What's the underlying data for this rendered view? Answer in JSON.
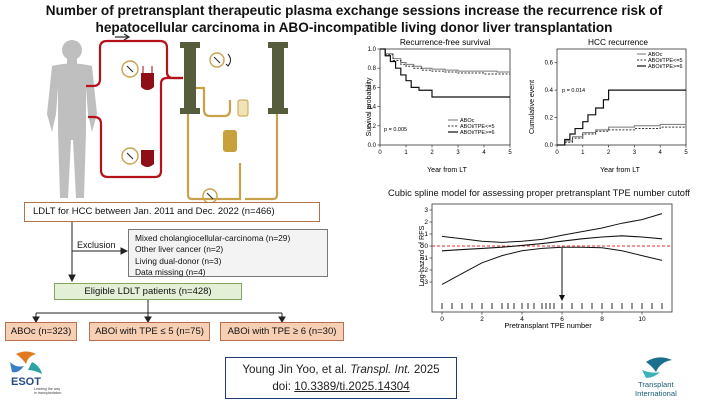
{
  "title": {
    "line1": "Number of pretransplant therapeutic plasma exchange sessions increase the recurrence risk of",
    "line2": "hepatocellular carcinoma in ABO-incompatible living donor liver transplantation"
  },
  "km_rfs": {
    "title": "Recurrence-free survival",
    "ylabel": "Survival probability",
    "xlabel": "Year from LT",
    "p_value": "p = 0.005",
    "legend": [
      "ABOc",
      "ABOi/TPE<=5",
      "ABOi/TPE>=6"
    ]
  },
  "km_hcc": {
    "title": "HCC recurrence",
    "ylabel": "Cumulative event",
    "xlabel": "Year from LT",
    "p_value": "p = 0.014",
    "legend": [
      "ABOc",
      "ABOi/TPE<=5",
      "ABOi/TPE>=6"
    ]
  },
  "spline": {
    "title": "Cubic spline model for assessing proper pretransplant TPE number cutoff",
    "ylabel": "Log-hazard of RFS",
    "xlabel": "Pretransplant TPE number"
  },
  "flowchart": {
    "start": "LDLT for HCC between Jan. 2011 and Dec. 2022 (n=466)",
    "exclusion_label": "Exclusion",
    "exclusions": [
      "Mixed cholangiocellular-carcinoma (n=29)",
      "Other liver cancer (n=2)",
      "Living dual-donor (n=3)",
      "Data missing (n=4)"
    ],
    "eligible": "Eligible LDLT patients (n=428)",
    "groups": [
      "ABOc (n=323)",
      "ABOi with TPE ≤ 5 (n=75)",
      "ABOi with TPE ≥ 6 (n=30)"
    ]
  },
  "citation": {
    "authors": "Young Jin Yoo, et al.",
    "journal": "Transpl. Int.",
    "year": "2025",
    "doi_label": "doi:",
    "doi": "10.3389/ti.2025.14304"
  },
  "logos": {
    "esot": "ESOT",
    "esot_tagline_1": "Leading the way",
    "esot_tagline_2": "in transplantation",
    "ti_1": "Transplant",
    "ti_2": "International"
  },
  "chart_data": [
    {
      "type": "line",
      "title": "Recurrence-free survival",
      "xlabel": "Year from LT",
      "ylabel": "Survival probability",
      "xlim": [
        0,
        5
      ],
      "ylim": [
        0,
        1
      ],
      "xticks": [
        0,
        1,
        2,
        3,
        4,
        5
      ],
      "yticks": [
        0.0,
        0.2,
        0.4,
        0.6,
        0.8,
        1.0
      ],
      "legend_position": "bottom-right",
      "series": [
        {
          "name": "ABOc",
          "x": [
            0,
            0.2,
            0.5,
            0.8,
            1.0,
            1.3,
            1.6,
            2.0,
            2.5,
            3.0,
            3.5,
            4.0,
            4.5,
            5.0
          ],
          "y": [
            1.0,
            0.95,
            0.9,
            0.86,
            0.84,
            0.82,
            0.8,
            0.79,
            0.78,
            0.77,
            0.77,
            0.77,
            0.76,
            0.76
          ]
        },
        {
          "name": "ABOi/TPE<=5",
          "x": [
            0,
            0.2,
            0.5,
            0.8,
            1.0,
            1.3,
            1.6,
            2.0,
            2.5,
            3.0,
            3.5,
            4.0,
            4.5,
            5.0
          ],
          "y": [
            1.0,
            0.94,
            0.88,
            0.84,
            0.82,
            0.8,
            0.78,
            0.77,
            0.76,
            0.75,
            0.75,
            0.74,
            0.74,
            0.74
          ]
        },
        {
          "name": "ABOi/TPE>=6",
          "x": [
            0,
            0.2,
            0.4,
            0.6,
            0.8,
            1.0,
            1.2,
            1.5,
            2.0,
            3.0,
            4.0,
            5.0
          ],
          "y": [
            1.0,
            0.93,
            0.87,
            0.8,
            0.73,
            0.67,
            0.6,
            0.57,
            0.5,
            0.5,
            0.5,
            0.5
          ]
        }
      ]
    },
    {
      "type": "line",
      "title": "HCC recurrence",
      "xlabel": "Year from LT",
      "ylabel": "Cumulative event",
      "xlim": [
        0,
        5
      ],
      "ylim": [
        0,
        0.7
      ],
      "xticks": [
        0,
        1,
        2,
        3,
        4,
        5
      ],
      "yticks": [
        0.0,
        0.2,
        0.4,
        0.6
      ],
      "legend_position": "top-right",
      "series": [
        {
          "name": "ABOc",
          "x": [
            0,
            0.3,
            0.6,
            1.0,
            1.5,
            2.0,
            3.0,
            4.0,
            5.0
          ],
          "y": [
            0,
            0.03,
            0.06,
            0.09,
            0.11,
            0.13,
            0.14,
            0.15,
            0.16
          ]
        },
        {
          "name": "ABOi/TPE<=5",
          "x": [
            0,
            0.3,
            0.6,
            1.0,
            1.5,
            2.0,
            3.0,
            4.0,
            5.0
          ],
          "y": [
            0,
            0.02,
            0.05,
            0.08,
            0.1,
            0.11,
            0.12,
            0.13,
            0.13
          ]
        },
        {
          "name": "ABOi/TPE>=6",
          "x": [
            0,
            0.3,
            0.5,
            0.7,
            1.0,
            1.2,
            1.5,
            1.8,
            2.0,
            3.0,
            4.0,
            5.0
          ],
          "y": [
            0,
            0.04,
            0.08,
            0.12,
            0.17,
            0.22,
            0.27,
            0.33,
            0.4,
            0.4,
            0.4,
            0.4
          ]
        }
      ]
    },
    {
      "type": "line",
      "title": "Cubic spline model for assessing proper pretransplant TPE number cutoff",
      "xlabel": "Pretransplant TPE number",
      "ylabel": "Log-hazard of RFS",
      "xlim": [
        -0.5,
        11.5
      ],
      "ylim": [
        -3.5,
        3.5
      ],
      "xticks": [
        0,
        2,
        4,
        6,
        8,
        10
      ],
      "yticks": [
        -3,
        -2,
        -1,
        0,
        1,
        2,
        3
      ],
      "reference_line_y": 0,
      "cutoff_marker_x": 6,
      "rug_x": [
        0,
        0.5,
        1,
        1.5,
        2,
        2.5,
        3,
        3.3,
        3.6,
        4,
        4.3,
        4.6,
        5,
        5.2,
        5.4,
        5.6,
        6,
        6.5,
        7,
        7.5,
        8,
        8.5,
        9,
        9.5,
        10,
        10.5,
        11
      ],
      "series": [
        {
          "name": "estimate",
          "x": [
            0,
            1,
            2,
            3,
            4,
            5,
            6,
            7,
            8,
            9,
            10,
            11
          ],
          "y": [
            -0.4,
            -0.3,
            -0.2,
            -0.1,
            0.05,
            0.2,
            0.4,
            0.6,
            0.75,
            0.85,
            0.75,
            0.6
          ]
        },
        {
          "name": "upper",
          "x": [
            0,
            1,
            2,
            3,
            4,
            5,
            6,
            7,
            8,
            9,
            10,
            11
          ],
          "y": [
            0.8,
            0.6,
            0.4,
            0.3,
            0.4,
            0.55,
            0.9,
            1.2,
            1.5,
            1.9,
            2.2,
            2.7
          ]
        },
        {
          "name": "lower",
          "x": [
            0,
            1,
            2,
            3,
            4,
            5,
            6,
            7,
            8,
            9,
            10,
            11
          ],
          "y": [
            -3.2,
            -2.3,
            -1.4,
            -0.8,
            -0.4,
            -0.2,
            -0.1,
            -0.1,
            -0.15,
            -0.4,
            -0.8,
            -1.2
          ]
        }
      ]
    }
  ]
}
